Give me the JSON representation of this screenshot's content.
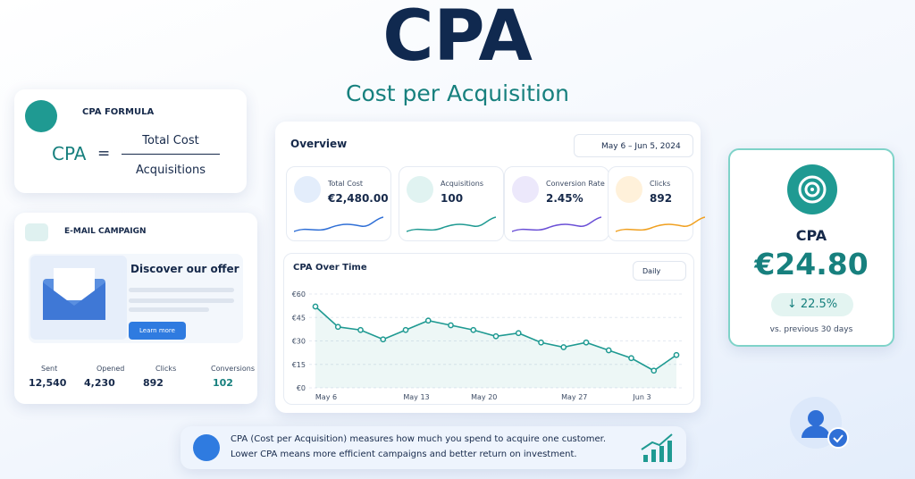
{
  "header": {
    "title": "CPA",
    "subtitle": "Cost per Acquisition"
  },
  "formula": {
    "title": "CPA FORMULA",
    "lhs": "CPA",
    "equals": "=",
    "numerator": "Total Cost",
    "denominator": "Acquisitions"
  },
  "email": {
    "title": "E-MAIL CAMPAIGN",
    "heading": "Discover our offer",
    "button": "Learn more",
    "stats": [
      {
        "label": "Sent",
        "value": "12,540"
      },
      {
        "label": "Opened",
        "value": "4,230"
      },
      {
        "label": "Clicks",
        "value": "892"
      },
      {
        "label": "Conversions",
        "value": "102"
      }
    ]
  },
  "overview": {
    "title": "Overview",
    "date_range": "May 6 – Jun 5, 2024",
    "kpis": [
      {
        "label": "Total Cost",
        "value": "€2,480.00"
      },
      {
        "label": "Acquisitions",
        "value": "100"
      },
      {
        "label": "Conversion Rate",
        "value": "2.45%"
      },
      {
        "label": "Clicks",
        "value": "892"
      }
    ]
  },
  "chart_data": {
    "type": "line",
    "title": "CPA Over Time",
    "period": "Daily",
    "categories": [
      "May 6",
      null,
      null,
      null,
      "May 13",
      null,
      null,
      "May 20",
      null,
      null,
      null,
      "May 27",
      null,
      null,
      "Jun 3",
      null,
      null
    ],
    "series": [
      {
        "name": "CPA",
        "color": "#1f9a92",
        "values": [
          52,
          39,
          37,
          31,
          37,
          43,
          40,
          37,
          33,
          35,
          29,
          26,
          29,
          24,
          19,
          11,
          21
        ]
      }
    ],
    "ylim": [
      0,
      60
    ],
    "yticks": [
      {
        "value": 0,
        "label": "€0"
      },
      {
        "value": 15,
        "label": "€15"
      },
      {
        "value": 30,
        "label": "€30"
      },
      {
        "value": 45,
        "label": "€45"
      },
      {
        "value": 60,
        "label": "€60"
      }
    ],
    "grid": true
  },
  "cpa_card": {
    "label": "CPA",
    "value": "€24.80",
    "change": "22.5%",
    "note": "vs. previous 30 days"
  },
  "footer": {
    "line1": "CPA (Cost per Acquisition) measures how much you spend to acquire one customer.",
    "line2": "Lower CPA means more efficient campaigns and better return on investment."
  }
}
